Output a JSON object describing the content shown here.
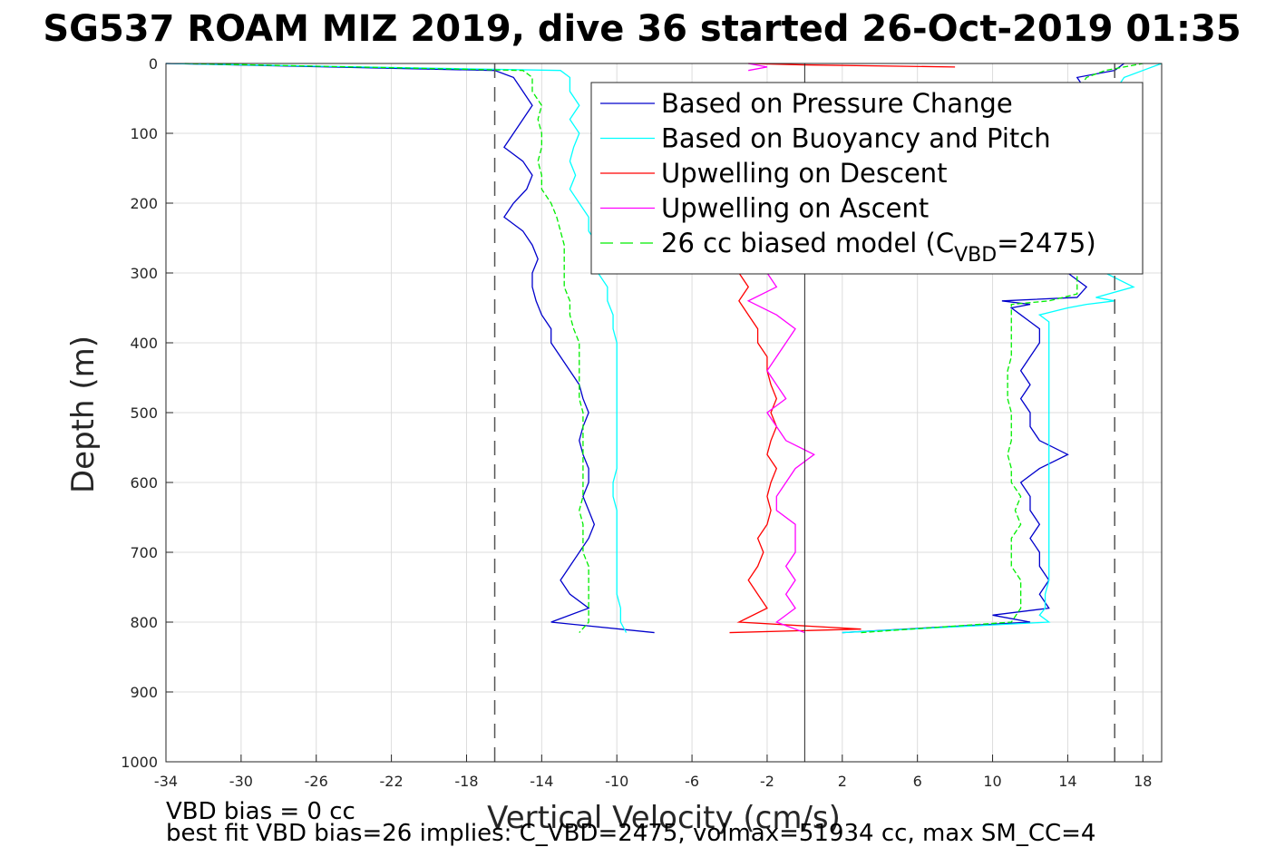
{
  "chart_data": {
    "type": "line",
    "title": "SG537 ROAM MIZ 2019, dive 36 started 26-Oct-2019 01:35",
    "xlabel": "Vertical Velocity (cm/s)",
    "ylabel": "Depth (m)",
    "xlim": [
      -34,
      19
    ],
    "ylim": [
      0,
      1000
    ],
    "y_reversed": true,
    "grid": true,
    "x_ticks": [
      -34,
      -30,
      -26,
      -22,
      -18,
      -14,
      -10,
      -6,
      -2,
      2,
      6,
      10,
      14,
      18
    ],
    "y_ticks": [
      0,
      100,
      200,
      300,
      400,
      500,
      600,
      700,
      800,
      900,
      1000
    ],
    "reference_lines": {
      "vertical_solid_x": 0,
      "vertical_dashed_x": [
        -16.5,
        16.5
      ]
    },
    "legend": {
      "placement": "top-right"
    },
    "series": [
      {
        "name": "Based on Pressure Change",
        "color": "#0000cc",
        "style": "solid",
        "descent": {
          "depth": [
            0,
            10,
            20,
            40,
            60,
            80,
            100,
            120,
            140,
            160,
            180,
            200,
            220,
            240,
            260,
            280,
            300,
            320,
            340,
            360,
            380,
            400,
            420,
            440,
            460,
            480,
            500,
            520,
            540,
            560,
            580,
            600,
            620,
            640,
            660,
            680,
            700,
            720,
            740,
            760,
            780,
            800,
            815
          ],
          "velocity": [
            -34,
            -16.5,
            -15.5,
            -15,
            -14.5,
            -15,
            -15.5,
            -16,
            -15,
            -14.5,
            -14.8,
            -15.5,
            -16,
            -15,
            -14.5,
            -14.2,
            -14.5,
            -14.5,
            -14.3,
            -14,
            -13.5,
            -13.5,
            -13,
            -12.5,
            -12,
            -11.8,
            -11.5,
            -11.8,
            -12,
            -11.8,
            -11.5,
            -11.5,
            -11.8,
            -11.5,
            -11.2,
            -11.5,
            -12,
            -12.5,
            -13,
            -12.5,
            -11.5,
            -13.5,
            -8
          ]
        },
        "ascent": {
          "depth": [
            815,
            800,
            790,
            780,
            760,
            740,
            720,
            700,
            680,
            660,
            640,
            620,
            600,
            580,
            560,
            540,
            520,
            500,
            480,
            460,
            440,
            420,
            400,
            380,
            370,
            360,
            350,
            345,
            340,
            335,
            320,
            300,
            280,
            260,
            240,
            220,
            200,
            180,
            160,
            140,
            120,
            100,
            80,
            60,
            40,
            20,
            10,
            0
          ],
          "velocity": [
            2,
            12,
            10,
            13,
            12.5,
            13,
            12.5,
            12.5,
            12,
            12.5,
            12,
            12,
            11.5,
            12.5,
            14,
            12.5,
            12,
            12,
            11.5,
            12,
            11.5,
            12,
            12.5,
            12.5,
            12,
            11.5,
            11,
            12,
            10.5,
            14.5,
            15,
            14,
            14.5,
            15,
            15,
            15,
            14.5,
            14,
            15,
            14.5,
            15,
            14.5,
            15.5,
            14,
            15,
            14.5,
            16.5,
            17
          ]
        }
      },
      {
        "name": "Based on Buoyancy and Pitch",
        "color": "#00ffff",
        "style": "solid",
        "descent": {
          "depth": [
            0,
            10,
            20,
            40,
            60,
            80,
            100,
            120,
            140,
            160,
            180,
            200,
            220,
            240,
            260,
            280,
            300,
            320,
            340,
            360,
            380,
            400,
            420,
            440,
            460,
            480,
            500,
            520,
            540,
            560,
            580,
            600,
            620,
            640,
            660,
            680,
            700,
            720,
            740,
            760,
            780,
            800,
            815
          ],
          "velocity": [
            -34,
            -13,
            -12.5,
            -12.5,
            -12,
            -12.5,
            -12,
            -12.3,
            -12.5,
            -12.2,
            -12.5,
            -12,
            -11.5,
            -11.5,
            -11,
            -10.8,
            -11,
            -10.5,
            -10.5,
            -10.2,
            -10.2,
            -10,
            -10,
            -10,
            -10,
            -10,
            -10,
            -10,
            -10,
            -10,
            -10,
            -10.2,
            -10.2,
            -10,
            -10,
            -10,
            -10,
            -10,
            -10,
            -10,
            -9.8,
            -9.8,
            -9.5
          ]
        },
        "ascent": {
          "depth": [
            815,
            800,
            790,
            780,
            760,
            740,
            720,
            700,
            680,
            660,
            640,
            620,
            600,
            580,
            560,
            540,
            520,
            500,
            480,
            460,
            440,
            420,
            400,
            380,
            370,
            360,
            350,
            345,
            340,
            335,
            320,
            300,
            280,
            260,
            240,
            220,
            200,
            180,
            160,
            140,
            120,
            100,
            80,
            60,
            40,
            20,
            10,
            0
          ],
          "velocity": [
            2,
            13,
            12.5,
            12.8,
            12.8,
            13,
            13,
            13,
            13,
            13,
            13,
            13,
            13,
            13,
            13,
            13,
            13,
            13,
            13,
            13,
            13,
            13,
            13,
            13,
            13,
            12.5,
            14,
            15,
            16.5,
            15.5,
            17.5,
            16,
            16.5,
            16.5,
            16.5,
            16.5,
            16.5,
            16.5,
            16.5,
            16.5,
            16.5,
            16.5,
            16.5,
            16.5,
            16.5,
            17,
            18,
            19
          ]
        }
      },
      {
        "name": "Upwelling on Descent",
        "color": "#ff0000",
        "style": "solid",
        "segments": [
          {
            "depth": [
              0,
              2,
              5
            ],
            "velocity": [
              -3,
              0,
              8
            ]
          },
          {
            "depth": [
              300,
              320,
              340,
              360,
              380,
              400,
              420,
              440,
              460,
              480,
              500,
              520,
              540,
              560,
              580,
              600,
              620,
              640,
              660,
              680,
              700,
              720,
              740,
              760,
              780,
              800,
              810,
              815
            ],
            "velocity": [
              -3.5,
              -3,
              -3.5,
              -3,
              -2.5,
              -2.5,
              -2,
              -2,
              -1.8,
              -1.5,
              -1.8,
              -1.5,
              -1.8,
              -2,
              -1.5,
              -1.8,
              -2,
              -1.8,
              -2,
              -2.5,
              -2.2,
              -2.5,
              -3,
              -2.5,
              -2,
              -3.5,
              3,
              -4
            ]
          }
        ]
      },
      {
        "name": "Upwelling on Ascent",
        "color": "#ff00ff",
        "style": "solid",
        "segments": [
          {
            "depth": [
              0,
              5,
              10
            ],
            "velocity": [
              -3,
              -2,
              -3
            ]
          },
          {
            "depth": [
              300,
              320,
              340,
              360,
              380,
              400,
              420,
              440,
              460,
              480,
              500,
              520,
              540,
              560,
              580,
              600,
              620,
              640,
              660,
              680,
              700,
              720,
              740,
              760,
              780,
              800,
              815
            ],
            "velocity": [
              -2,
              -1.5,
              -3,
              -1.5,
              -0.5,
              -1,
              -1.5,
              -2,
              -1.5,
              -1,
              -2,
              -1.5,
              -1,
              0.5,
              -0.5,
              -1,
              -1.5,
              -1.5,
              -0.5,
              -0.5,
              -0.5,
              -1,
              -0.5,
              -1,
              -0.5,
              -1.5,
              0
            ]
          }
        ]
      },
      {
        "name": "26 cc biased model (C_VBD=2475)",
        "legend_main": "26 cc biased model (C",
        "legend_sub": "VBD",
        "legend_tail": "=2475)",
        "color": "#00ee00",
        "style": "dashed",
        "descent": {
          "depth": [
            0,
            10,
            20,
            40,
            60,
            80,
            100,
            120,
            140,
            160,
            180,
            200,
            220,
            240,
            260,
            280,
            300,
            320,
            340,
            360,
            380,
            400,
            420,
            440,
            460,
            480,
            500,
            520,
            540,
            560,
            580,
            600,
            620,
            640,
            660,
            680,
            700,
            720,
            740,
            760,
            780,
            800,
            815
          ],
          "velocity": [
            -33,
            -15,
            -14.5,
            -14.5,
            -14,
            -14.2,
            -14,
            -14,
            -14.2,
            -14,
            -14,
            -13.5,
            -13.2,
            -13,
            -12.8,
            -12.8,
            -12.8,
            -12.8,
            -12.5,
            -12.5,
            -12.3,
            -12,
            -12,
            -12,
            -12,
            -12,
            -11.8,
            -11.8,
            -11.8,
            -11.8,
            -11.8,
            -11.8,
            -11.8,
            -12,
            -11.8,
            -11.8,
            -11.8,
            -11.5,
            -11.5,
            -11.5,
            -11.5,
            -11.5,
            -12
          ]
        },
        "ascent": {
          "depth": [
            815,
            800,
            780,
            760,
            740,
            720,
            700,
            680,
            660,
            640,
            620,
            600,
            580,
            560,
            540,
            520,
            500,
            480,
            460,
            440,
            420,
            400,
            380,
            360,
            345,
            340,
            330,
            320,
            300,
            280,
            260,
            240,
            220,
            200,
            180,
            160,
            140,
            120,
            100,
            80,
            60,
            40,
            20,
            10,
            0
          ],
          "velocity": [
            3,
            11,
            11.5,
            11.5,
            11.5,
            11,
            11,
            11,
            11.5,
            11.2,
            11.5,
            11,
            11,
            10.8,
            11,
            11,
            11,
            10.8,
            10.8,
            10.8,
            11,
            11,
            11,
            11,
            11,
            13,
            14.5,
            14.5,
            14.5,
            14.5,
            14.5,
            14.5,
            14.5,
            14.5,
            14.5,
            14.5,
            14.5,
            14.5,
            14.5,
            14.5,
            14.5,
            14.5,
            15,
            16,
            18
          ]
        }
      }
    ],
    "annotations": [
      "VBD bias = 0 cc",
      "best fit VBD bias=26 implies: C_VBD=2475, volmax=51934 cc, max SM_CC=4"
    ]
  }
}
